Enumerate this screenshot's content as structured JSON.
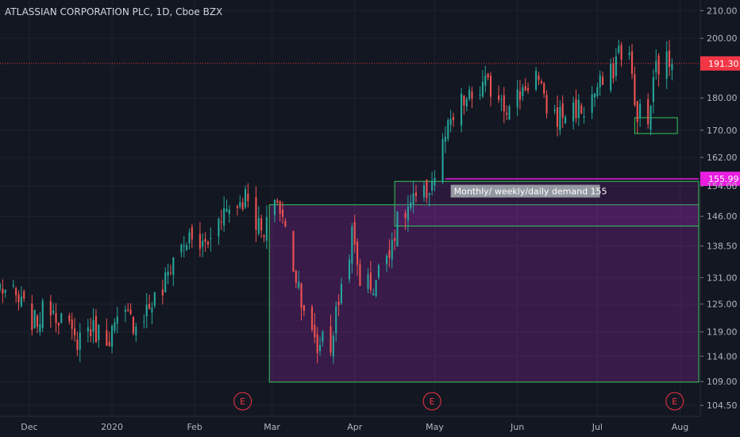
{
  "chart_data": {
    "type": "candlestick",
    "title": "ATLASSIAN CORPORATION PLC, 1D, Cboe BZX",
    "y_scale": "log",
    "ylim": [
      102.5,
      214
    ],
    "y_ticks": [
      "210.00",
      "200.00",
      "191.30",
      "180.00",
      "170.00",
      "162.00",
      "155.99",
      "154.00",
      "146.00",
      "138.50",
      "131.00",
      "125.00",
      "119.00",
      "114.00",
      "109.00",
      "104.50"
    ],
    "x_ticks": [
      {
        "label": "Dec",
        "date": "2019-12-01"
      },
      {
        "label": "2020",
        "date": "2020-01-01"
      },
      {
        "label": "Feb",
        "date": "2020-02-01"
      },
      {
        "label": "Mar",
        "date": "2020-03-01"
      },
      {
        "label": "Apr",
        "date": "2020-04-01"
      },
      {
        "label": "May",
        "date": "2020-05-01"
      },
      {
        "label": "Jun",
        "date": "2020-06-01"
      },
      {
        "label": "Jul",
        "date": "2020-07-01"
      },
      {
        "label": "Aug",
        "date": "2020-08-01"
      }
    ],
    "xlim": [
      "2019-11-20",
      "2020-08-08"
    ],
    "last_price": {
      "label": "191.30",
      "value": 191.3,
      "color": "#f23645"
    },
    "level_line": {
      "label": "155.99",
      "value": 155.99,
      "color": "#e91ee0"
    },
    "annotation": {
      "text": "Monthly/ weekly/daily demand 155"
    },
    "earnings_markers": [
      {
        "label": "E",
        "date": "2020-02-19"
      },
      {
        "label": "E",
        "date": "2020-04-30"
      },
      {
        "label": "E",
        "date": "2020-07-30"
      }
    ],
    "zones": [
      {
        "name": "big-demand-zone",
        "x0": "2020-02-29",
        "x1": "2020-08-08",
        "y0": 108.9,
        "y1": 149.0,
        "stroke": "#34c759",
        "fill": "rgba(156,39,176,0.28)"
      },
      {
        "name": "demand-155-zone",
        "x0": "2020-04-16",
        "x1": "2020-08-08",
        "y0": 143.5,
        "y1": 155.3,
        "stroke": "#34c759",
        "fill": "rgba(156,39,176,0.18)"
      },
      {
        "name": "small-green-box",
        "x0": "2020-07-15",
        "x1": "2020-07-31",
        "y0": 169.0,
        "y1": 173.8,
        "stroke": "#34c759",
        "fill": "rgba(0,0,0,0)"
      }
    ],
    "colors": {
      "up": "#26a69a",
      "down": "#ef5350",
      "background": "#131722",
      "grid": "#1e222d",
      "axis": "#b2b5be"
    },
    "anchors": [
      [
        "2019-11-20",
        129
      ],
      [
        "2019-11-26",
        126
      ],
      [
        "2019-12-03",
        121
      ],
      [
        "2019-12-09",
        125
      ],
      [
        "2019-12-13",
        122
      ],
      [
        "2019-12-18",
        117
      ],
      [
        "2019-12-23",
        120
      ],
      [
        "2019-12-30",
        118
      ],
      [
        "2020-01-06",
        122
      ],
      [
        "2020-01-10",
        121
      ],
      [
        "2020-01-14",
        124
      ],
      [
        "2020-01-20",
        128
      ],
      [
        "2020-01-24",
        136
      ],
      [
        "2020-01-29",
        140
      ],
      [
        "2020-02-04",
        138.5
      ],
      [
        "2020-02-07",
        140
      ],
      [
        "2020-02-10",
        147
      ],
      [
        "2020-02-14",
        148
      ],
      [
        "2020-02-18",
        150
      ],
      [
        "2020-02-21",
        152
      ],
      [
        "2020-02-24",
        145
      ],
      [
        "2020-02-27",
        140
      ],
      [
        "2020-03-02",
        152
      ],
      [
        "2020-03-05",
        145
      ],
      [
        "2020-03-09",
        134
      ],
      [
        "2020-03-12",
        127
      ],
      [
        "2020-03-16",
        118
      ],
      [
        "2020-03-18",
        115
      ],
      [
        "2020-03-20",
        119
      ],
      [
        "2020-03-23",
        116
      ],
      [
        "2020-03-26",
        126
      ],
      [
        "2020-03-31",
        141
      ],
      [
        "2020-04-03",
        131
      ],
      [
        "2020-04-08",
        129
      ],
      [
        "2020-04-13",
        137
      ],
      [
        "2020-04-17",
        144
      ],
      [
        "2020-04-22",
        149
      ],
      [
        "2020-04-27",
        151
      ],
      [
        "2020-05-01",
        157
      ],
      [
        "2020-05-05",
        168
      ],
      [
        "2020-05-11",
        178
      ],
      [
        "2020-05-15",
        180
      ],
      [
        "2020-05-20",
        184
      ],
      [
        "2020-05-26",
        181
      ],
      [
        "2020-05-29",
        176
      ],
      [
        "2020-06-03",
        183
      ],
      [
        "2020-06-08",
        188
      ],
      [
        "2020-06-11",
        178
      ],
      [
        "2020-06-16",
        174
      ],
      [
        "2020-06-22",
        177
      ],
      [
        "2020-06-26",
        176
      ],
      [
        "2020-07-01",
        183
      ],
      [
        "2020-07-06",
        187
      ],
      [
        "2020-07-09",
        196
      ],
      [
        "2020-07-13",
        194
      ],
      [
        "2020-07-15",
        177
      ],
      [
        "2020-07-20",
        172
      ],
      [
        "2020-07-23",
        190
      ],
      [
        "2020-07-27",
        192
      ],
      [
        "2020-07-29",
        191.3
      ]
    ]
  }
}
